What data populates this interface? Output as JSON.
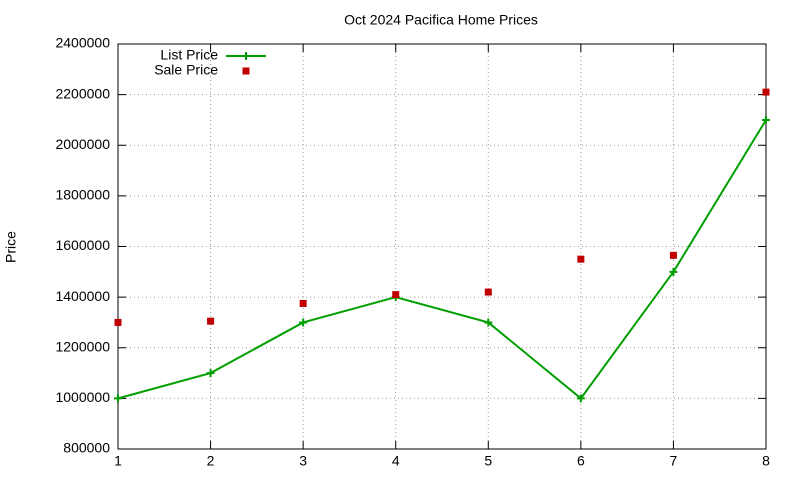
{
  "chart_data": {
    "type": "line",
    "title": "Oct 2024 Pacifica Home Prices",
    "y_label": "Price",
    "x": [
      1,
      2,
      3,
      4,
      5,
      6,
      7,
      8
    ],
    "series": [
      {
        "name": "List Price",
        "color": "#009e00",
        "mode": "lines+markers",
        "marker": "plus",
        "values": [
          1000000,
          1100000,
          1300000,
          1400000,
          1300000,
          1000000,
          1500000,
          2100000
        ]
      },
      {
        "name": "Sale Price",
        "color": "#c00000",
        "mode": "markers",
        "marker": "square",
        "values": [
          1300000,
          1305000,
          1375000,
          1410000,
          1420000,
          1550000,
          1565000,
          2210000
        ]
      }
    ],
    "xlim": [
      1,
      8
    ],
    "xticks": [
      1,
      2,
      3,
      4,
      5,
      6,
      7,
      8
    ],
    "ylim": [
      800000,
      2400000
    ],
    "yticks": [
      800000,
      1000000,
      1200000,
      1400000,
      1600000,
      1800000,
      2000000,
      2200000,
      2400000
    ],
    "grid": true,
    "legend": "top-left"
  }
}
